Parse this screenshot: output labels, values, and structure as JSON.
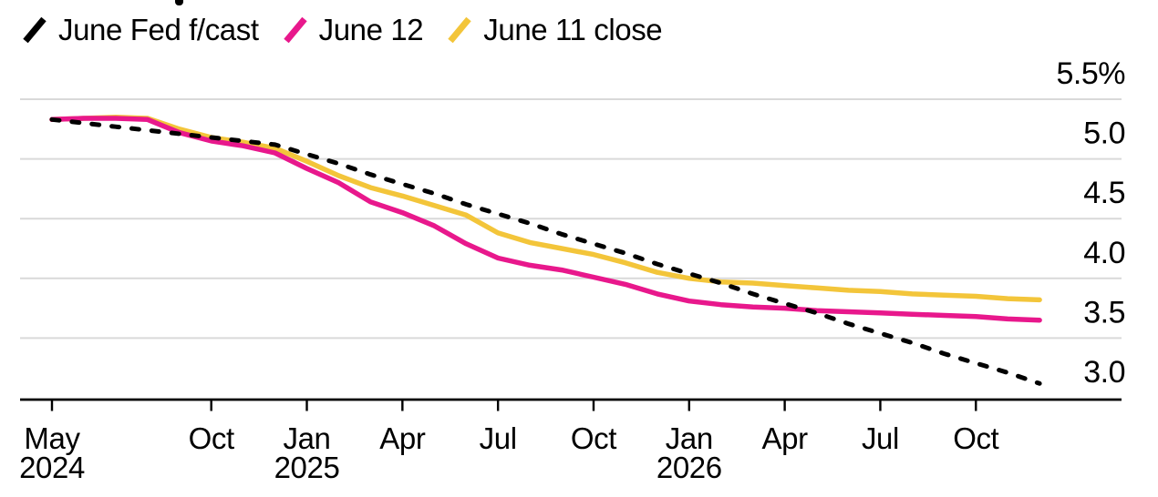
{
  "legend": {
    "items": [
      {
        "label": "June Fed f/cast",
        "color": "#000000",
        "style": "dashed"
      },
      {
        "label": "June 12",
        "color": "#e8188c",
        "style": "solid"
      },
      {
        "label": "June 11 close",
        "color": "#f3c53a",
        "style": "solid"
      }
    ]
  },
  "chart_data": {
    "type": "line",
    "unit": "%",
    "grid": true,
    "legend_position": "top-left",
    "x": [
      "May 2024",
      "Jun 2024",
      "Jul 2024",
      "Aug 2024",
      "Sep 2024",
      "Oct 2024",
      "Nov 2024",
      "Dec 2024",
      "Jan 2025",
      "Feb 2025",
      "Mar 2025",
      "Apr 2025",
      "May 2025",
      "Jun 2025",
      "Jul 2025",
      "Aug 2025",
      "Sep 2025",
      "Oct 2025",
      "Nov 2025",
      "Dec 2025",
      "Jan 2026",
      "Feb 2026",
      "Mar 2026",
      "Apr 2026",
      "May 2026",
      "Jun 2026",
      "Jul 2026",
      "Aug 2026",
      "Sep 2026",
      "Oct 2026",
      "Nov 2026",
      "Dec 2026"
    ],
    "series": [
      {
        "name": "June 11 close",
        "color": "#f3c53a",
        "dash": false,
        "values": [
          5.33,
          5.34,
          5.35,
          5.34,
          5.25,
          5.18,
          5.14,
          5.09,
          4.98,
          4.86,
          4.76,
          4.69,
          4.61,
          4.53,
          4.38,
          4.3,
          4.25,
          4.2,
          4.13,
          4.05,
          4.0,
          3.97,
          3.96,
          3.94,
          3.92,
          3.9,
          3.89,
          3.87,
          3.86,
          3.85,
          3.83,
          3.82
        ]
      },
      {
        "name": "June 12",
        "color": "#e8188c",
        "dash": false,
        "values": [
          5.33,
          5.34,
          5.34,
          5.33,
          5.22,
          5.15,
          5.11,
          5.05,
          4.92,
          4.8,
          4.64,
          4.55,
          4.44,
          4.29,
          4.17,
          4.11,
          4.07,
          4.01,
          3.95,
          3.87,
          3.81,
          3.78,
          3.76,
          3.75,
          3.73,
          3.72,
          3.71,
          3.7,
          3.69,
          3.68,
          3.66,
          3.65
        ]
      },
      {
        "name": "June Fed f/cast",
        "color": "#000000",
        "dash": true,
        "values": [
          5.33,
          5.3,
          5.27,
          5.24,
          5.21,
          5.18,
          5.15,
          5.12,
          5.04,
          4.96,
          4.87,
          4.79,
          4.71,
          4.62,
          4.54,
          4.46,
          4.37,
          4.29,
          4.21,
          4.12,
          4.04,
          3.96,
          3.87,
          3.79,
          3.71,
          3.62,
          3.54,
          3.46,
          3.37,
          3.29,
          3.21,
          3.12
        ]
      }
    ],
    "y_axis": {
      "min": 3.0,
      "max": 5.5,
      "ticks": [
        5.5,
        5.0,
        4.5,
        4.0,
        3.5,
        3.0
      ],
      "labels": [
        "5.5%",
        "5.0",
        "4.5",
        "4.0",
        "3.5",
        "3.0"
      ]
    },
    "x_axis": {
      "tick_month_indices": [
        0,
        5,
        8,
        11,
        14,
        17,
        20,
        23,
        26,
        29
      ],
      "tick_labels": [
        "May",
        "Oct",
        "Jan",
        "Apr",
        "Jul",
        "Oct",
        "Jan",
        "Apr",
        "Jul",
        "Oct"
      ],
      "year_labels": [
        {
          "index": 0,
          "label": "2024"
        },
        {
          "index": 8,
          "label": "2025"
        },
        {
          "index": 20,
          "label": "2026"
        }
      ]
    },
    "colors": {
      "gridline": "#d9d9d9",
      "axis": "#000000",
      "text": "#000000"
    }
  }
}
